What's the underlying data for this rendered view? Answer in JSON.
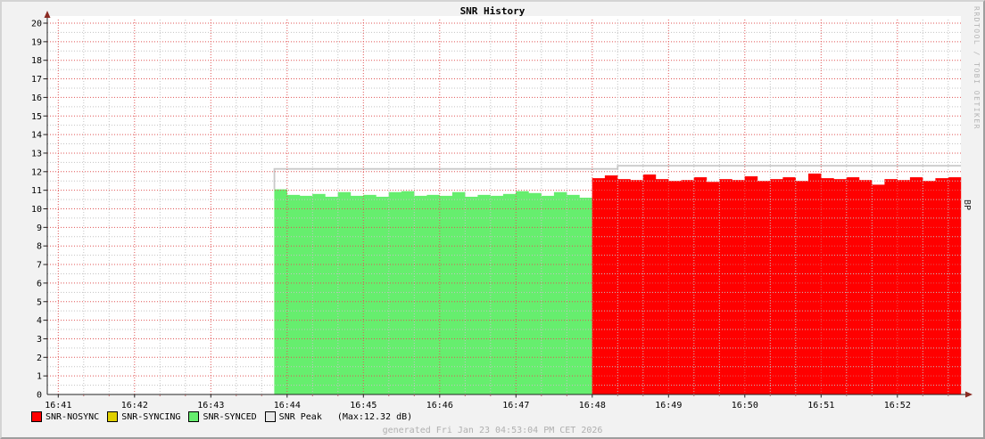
{
  "header": {
    "title": "SNR History"
  },
  "watermark": "RRDTOOL / TOBI OETIKER",
  "footer": {
    "generated": "generated Fri Jan 23 04:53:04 PM CET 2026"
  },
  "legend": {
    "items": [
      {
        "label": "SNR-NOSYNC",
        "color": "#ff0000"
      },
      {
        "label": "SNR-SYNCING",
        "color": "#e0d000"
      },
      {
        "label": "SNR-SYNCED",
        "color": "#66ee6e"
      },
      {
        "label": "SNR Peak",
        "color": "#e8e8e8"
      }
    ],
    "peak_max_note": "(Max:12.32 dB)"
  },
  "chart_data": {
    "type": "bar",
    "title": "SNR History",
    "ylabel_right": "BP",
    "ylim": [
      0,
      20
    ],
    "y_tick_step": 1,
    "x_tick_labels": [
      "16:41",
      "16:42",
      "16:43",
      "16:44",
      "16:45",
      "16:46",
      "16:47",
      "16:48",
      "16:49",
      "16:50",
      "16:51",
      "16:52"
    ],
    "x_tick_interval_s": 60,
    "x_domain_s": [
      -9,
      710
    ],
    "bar_step_s": 10,
    "grid": {
      "minor_x_s": 20,
      "minor_y": 0.5,
      "major_color": "#e05555",
      "minor_color": "#c3c3c3"
    },
    "series": [
      {
        "name": "SNR-SYNCED",
        "color": "#66ee6e",
        "start_s": 170,
        "values": [
          11.05,
          10.75,
          10.7,
          10.8,
          10.65,
          10.9,
          10.7,
          10.75,
          10.65,
          10.9,
          10.95,
          10.7,
          10.75,
          10.7,
          10.9,
          10.65,
          10.75,
          10.7,
          10.8,
          10.95,
          10.85,
          10.7,
          10.9,
          10.75,
          10.6
        ]
      },
      {
        "name": "SNR-NOSYNC",
        "color": "#ff0000",
        "start_s": 420,
        "values": [
          11.65,
          11.8,
          11.6,
          11.55,
          11.85,
          11.6,
          11.5,
          11.55,
          11.7,
          11.45,
          11.6,
          11.55,
          11.75,
          11.5,
          11.6,
          11.7,
          11.5,
          11.9,
          11.65,
          11.6,
          11.7,
          11.55,
          11.3,
          11.6,
          11.55,
          11.7,
          11.5,
          11.65,
          11.7
        ]
      }
    ],
    "peak_line": {
      "name": "SNR Peak",
      "color": "#c9c9c9",
      "max_value_db": 12.32,
      "segments": [
        {
          "from_s": 170,
          "to_s": 440,
          "value": 12.15
        },
        {
          "from_s": 440,
          "to_s": 710,
          "value": 12.32
        }
      ]
    }
  }
}
